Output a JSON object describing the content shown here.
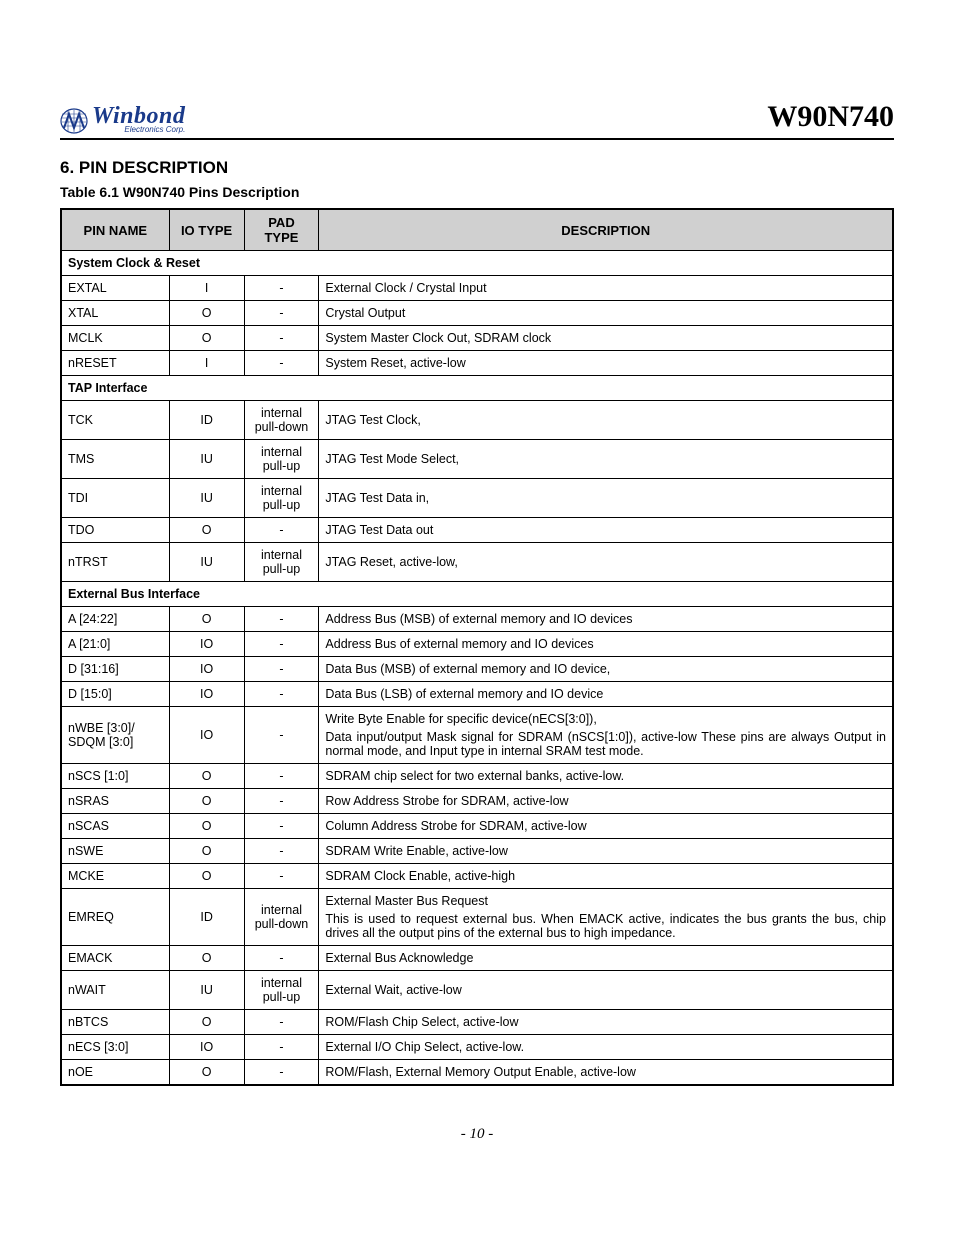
{
  "header": {
    "logo_main": "Winbond",
    "logo_sub": "Electronics Corp.",
    "chip_title": "W90N740"
  },
  "section": {
    "number_title": "6.  PIN DESCRIPTION",
    "table_title": "Table 6.1 W90N740 Pins Description"
  },
  "table": {
    "columns": {
      "pin_name": "PIN NAME",
      "io_type": "IO TYPE",
      "pad_type": "PAD TYPE",
      "description": "DESCRIPTION"
    },
    "header_bg": "#d0d0d0",
    "border_color": "#000000",
    "groups": [
      {
        "title": "System Clock & Reset",
        "rows": [
          {
            "pin": "EXTAL",
            "io": "I",
            "pad": "-",
            "desc": [
              "External Clock / Crystal Input"
            ]
          },
          {
            "pin": "XTAL",
            "io": "O",
            "pad": "-",
            "desc": [
              "Crystal Output"
            ]
          },
          {
            "pin": "MCLK",
            "io": "O",
            "pad": "-",
            "desc": [
              "System Master Clock Out, SDRAM clock"
            ]
          },
          {
            "pin": "nRESET",
            "io": "I",
            "pad": "-",
            "desc": [
              "System Reset, active-low"
            ]
          }
        ]
      },
      {
        "title": "TAP Interface",
        "rows": [
          {
            "pin": "TCK",
            "io": "ID",
            "pad": "internal pull-down",
            "desc": [
              "JTAG Test Clock,"
            ]
          },
          {
            "pin": "TMS",
            "io": "IU",
            "pad": "internal pull-up",
            "desc": [
              "JTAG Test Mode Select,"
            ]
          },
          {
            "pin": "TDI",
            "io": "IU",
            "pad": "internal pull-up",
            "desc": [
              "JTAG Test Data in,"
            ]
          },
          {
            "pin": "TDO",
            "io": "O",
            "pad": "-",
            "desc": [
              "JTAG Test Data out"
            ]
          },
          {
            "pin": "nTRST",
            "io": "IU",
            "pad": "internal pull-up",
            "desc": [
              "JTAG Reset, active-low,"
            ]
          }
        ]
      },
      {
        "title": "External Bus Interface",
        "rows": [
          {
            "pin": "A [24:22]",
            "io": "O",
            "pad": "-",
            "desc": [
              "Address Bus (MSB) of external memory and IO devices"
            ]
          },
          {
            "pin": "A [21:0]",
            "io": "IO",
            "pad": "-",
            "desc": [
              "Address Bus of external memory and IO devices"
            ]
          },
          {
            "pin": "D [31:16]",
            "io": "IO",
            "pad": "-",
            "desc": [
              "Data Bus (MSB) of external memory and IO device,"
            ]
          },
          {
            "pin": "D [15:0]",
            "io": "IO",
            "pad": "-",
            "desc": [
              "Data Bus (LSB) of external memory and IO device"
            ]
          },
          {
            "pin": "nWBE [3:0]/ SDQM [3:0]",
            "io": "IO",
            "pad": "-",
            "desc": [
              "Write Byte Enable for specific device(nECS[3:0]),",
              "Data input/output Mask signal for SDRAM (nSCS[1:0]), active-low These pins are always Output in normal mode, and Input type in internal SRAM test mode."
            ],
            "justify": true
          },
          {
            "pin": "nSCS [1:0]",
            "io": "O",
            "pad": "-",
            "desc": [
              "SDRAM chip select for two external banks, active-low."
            ]
          },
          {
            "pin": "nSRAS",
            "io": "O",
            "pad": "-",
            "desc": [
              "Row Address Strobe for SDRAM, active-low"
            ]
          },
          {
            "pin": "nSCAS",
            "io": "O",
            "pad": "-",
            "desc": [
              "Column Address Strobe for SDRAM, active-low"
            ]
          },
          {
            "pin": "nSWE",
            "io": "O",
            "pad": "-",
            "desc": [
              "SDRAM Write Enable, active-low"
            ]
          },
          {
            "pin": "MCKE",
            "io": "O",
            "pad": "-",
            "desc": [
              "SDRAM Clock Enable, active-high"
            ]
          },
          {
            "pin": "EMREQ",
            "io": "ID",
            "pad": "internal pull-down",
            "desc": [
              "External Master Bus Request",
              "This is used to request external bus. When EMACK active, indicates the bus grants the bus, chip drives all the output pins of the external bus to high impedance."
            ],
            "justify": true
          },
          {
            "pin": "EMACK",
            "io": "O",
            "pad": "-",
            "desc": [
              "External Bus Acknowledge"
            ]
          },
          {
            "pin": "nWAIT",
            "io": "IU",
            "pad": "internal pull-up",
            "desc": [
              "External Wait, active-low"
            ]
          },
          {
            "pin": "nBTCS",
            "io": "O",
            "pad": "-",
            "desc": [
              "ROM/Flash Chip Select, active-low"
            ]
          },
          {
            "pin": "nECS [3:0]",
            "io": "IO",
            "pad": "-",
            "desc": [
              "External I/O Chip Select, active-low."
            ]
          },
          {
            "pin": "nOE",
            "io": "O",
            "pad": "-",
            "desc": [
              "ROM/Flash, External Memory Output Enable, active-low"
            ]
          }
        ]
      }
    ]
  },
  "footer": {
    "page_number": "- 10 -"
  }
}
